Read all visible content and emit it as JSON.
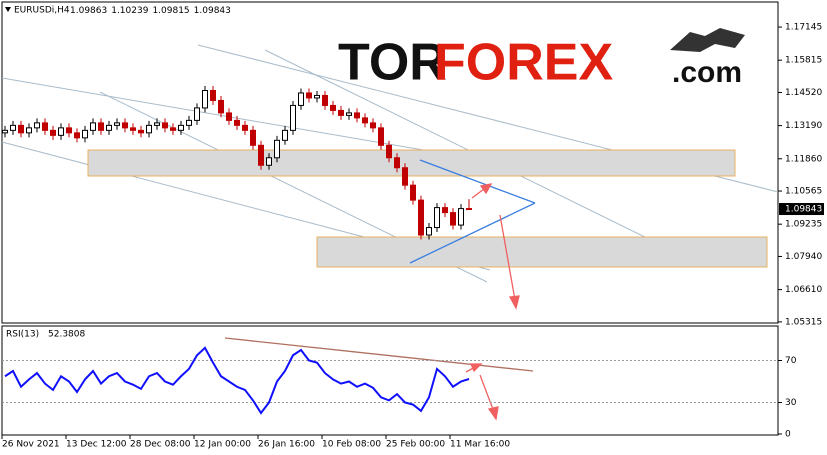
{
  "chart_data": {
    "type": "candlestick",
    "symbol": "EURUSDi,H4",
    "up_color": "#000000",
    "down_color": "#c00000",
    "categories": [
      "26 Nov 2021",
      null,
      null,
      null,
      null,
      null,
      null,
      null,
      "13 Dec 12:00",
      null,
      null,
      null,
      null,
      null,
      null,
      null,
      "28 Dec 08:00",
      null,
      null,
      null,
      null,
      null,
      null,
      null,
      "12 Jan 00:00",
      null,
      null,
      null,
      null,
      null,
      null,
      null,
      "26 Jan 16:00",
      null,
      null,
      null,
      null,
      null,
      null,
      null,
      "10 Feb 08:00",
      null,
      null,
      null,
      null,
      null,
      null,
      null,
      "25 Feb 00:00",
      null,
      null,
      null,
      null,
      null,
      null,
      null,
      "11 Mar 16:00",
      null,
      null
    ],
    "open": [
      1.129,
      1.13,
      1.132,
      1.129,
      1.131,
      1.133,
      1.13,
      1.128,
      1.131,
      1.129,
      1.127,
      1.13,
      1.133,
      1.13,
      1.132,
      1.133,
      1.131,
      1.13,
      1.129,
      1.132,
      1.133,
      1.131,
      1.13,
      1.132,
      1.134,
      1.139,
      1.146,
      1.142,
      1.137,
      1.134,
      1.132,
      1.13,
      1.124,
      1.116,
      1.119,
      1.126,
      1.13,
      1.14,
      1.145,
      1.143,
      1.144,
      1.14,
      1.138,
      1.136,
      1.137,
      1.135,
      1.133,
      1.131,
      1.124,
      1.119,
      1.115,
      1.108,
      1.102,
      1.088,
      1.091,
      1.099,
      1.097,
      1.092,
      1.09863
    ],
    "high": [
      1.1318,
      1.1338,
      1.1338,
      1.1328,
      1.1348,
      1.1348,
      1.1318,
      1.1328,
      1.1328,
      1.1308,
      1.1318,
      1.1348,
      1.1348,
      1.1338,
      1.1348,
      1.1348,
      1.1328,
      1.1318,
      1.1338,
      1.1348,
      1.1348,
      1.1328,
      1.1338,
      1.1358,
      1.1408,
      1.1478,
      1.1478,
      1.1438,
      1.1388,
      1.1358,
      1.1338,
      1.1318,
      1.1258,
      1.1208,
      1.1278,
      1.1318,
      1.1418,
      1.1468,
      1.1468,
      1.1458,
      1.1458,
      1.1418,
      1.1398,
      1.1388,
      1.1388,
      1.1368,
      1.1348,
      1.1328,
      1.1258,
      1.1208,
      1.1168,
      1.1098,
      1.1038,
      1.0928,
      1.1008,
      1.1008,
      1.0988,
      1.1004,
      1.10239
    ],
    "low": [
      1.1272,
      1.1282,
      1.1272,
      1.1272,
      1.1292,
      1.1282,
      1.1262,
      1.1262,
      1.1272,
      1.1252,
      1.1252,
      1.1282,
      1.1282,
      1.1282,
      1.1302,
      1.1292,
      1.1282,
      1.1272,
      1.1272,
      1.1302,
      1.1292,
      1.1282,
      1.1282,
      1.1302,
      1.1322,
      1.1372,
      1.1402,
      1.1352,
      1.1322,
      1.1302,
      1.1282,
      1.1222,
      1.1142,
      1.1142,
      1.1172,
      1.1242,
      1.1282,
      1.1382,
      1.1412,
      1.1412,
      1.1382,
      1.1362,
      1.1342,
      1.1342,
      1.1332,
      1.1312,
      1.1292,
      1.1222,
      1.1172,
      1.1132,
      1.1062,
      1.1002,
      1.0862,
      1.0862,
      1.0892,
      1.0952,
      1.0902,
      1.0902,
      1.09815
    ],
    "close": [
      1.13,
      1.132,
      1.129,
      1.131,
      1.133,
      1.13,
      1.128,
      1.131,
      1.129,
      1.127,
      1.13,
      1.133,
      1.13,
      1.132,
      1.133,
      1.131,
      1.13,
      1.129,
      1.132,
      1.133,
      1.131,
      1.13,
      1.132,
      1.134,
      1.139,
      1.146,
      1.142,
      1.137,
      1.134,
      1.132,
      1.13,
      1.124,
      1.116,
      1.119,
      1.126,
      1.13,
      1.14,
      1.145,
      1.143,
      1.144,
      1.14,
      1.138,
      1.136,
      1.137,
      1.135,
      1.133,
      1.131,
      1.124,
      1.119,
      1.115,
      1.108,
      1.102,
      1.088,
      1.091,
      1.099,
      1.097,
      1.092,
      1.0986,
      1.09843
    ],
    "ylim": [
      1.0527,
      1.1815
    ],
    "yticks": [
      1.17145,
      {
        "value": 1.15815,
        "label": "1.15815"
      },
      {
        "value": 1.1452,
        "label": "1.14520"
      },
      {
        "value": 1.1319,
        "label": "1.13190"
      },
      {
        "value": 1.1186,
        "label": "1.11860"
      },
      1.10565,
      1.09235,
      {
        "value": 1.0794,
        "label": "1.07940"
      },
      {
        "value": 1.0661,
        "label": "1.06610"
      },
      1.05315
    ],
    "indicator": {
      "name": "RSI(13)",
      "color": "#1010ff",
      "ylim": [
        0,
        100
      ],
      "yticks": [
        70,
        30,
        0
      ],
      "values": [
        55,
        60,
        45,
        52,
        58,
        48,
        42,
        55,
        50,
        40,
        52,
        60,
        48,
        55,
        58,
        50,
        47,
        43,
        55,
        58,
        50,
        47,
        55,
        62,
        75,
        82,
        68,
        55,
        50,
        45,
        42,
        32,
        20,
        30,
        50,
        60,
        75,
        80,
        70,
        68,
        58,
        52,
        48,
        50,
        45,
        48,
        44,
        35,
        32,
        38,
        30,
        28,
        22,
        35,
        62,
        55,
        45,
        50,
        52.3808
      ]
    }
  },
  "logo": {
    "part1": "TOR",
    "part2": "FOREX",
    "part3": ".com"
  }
}
